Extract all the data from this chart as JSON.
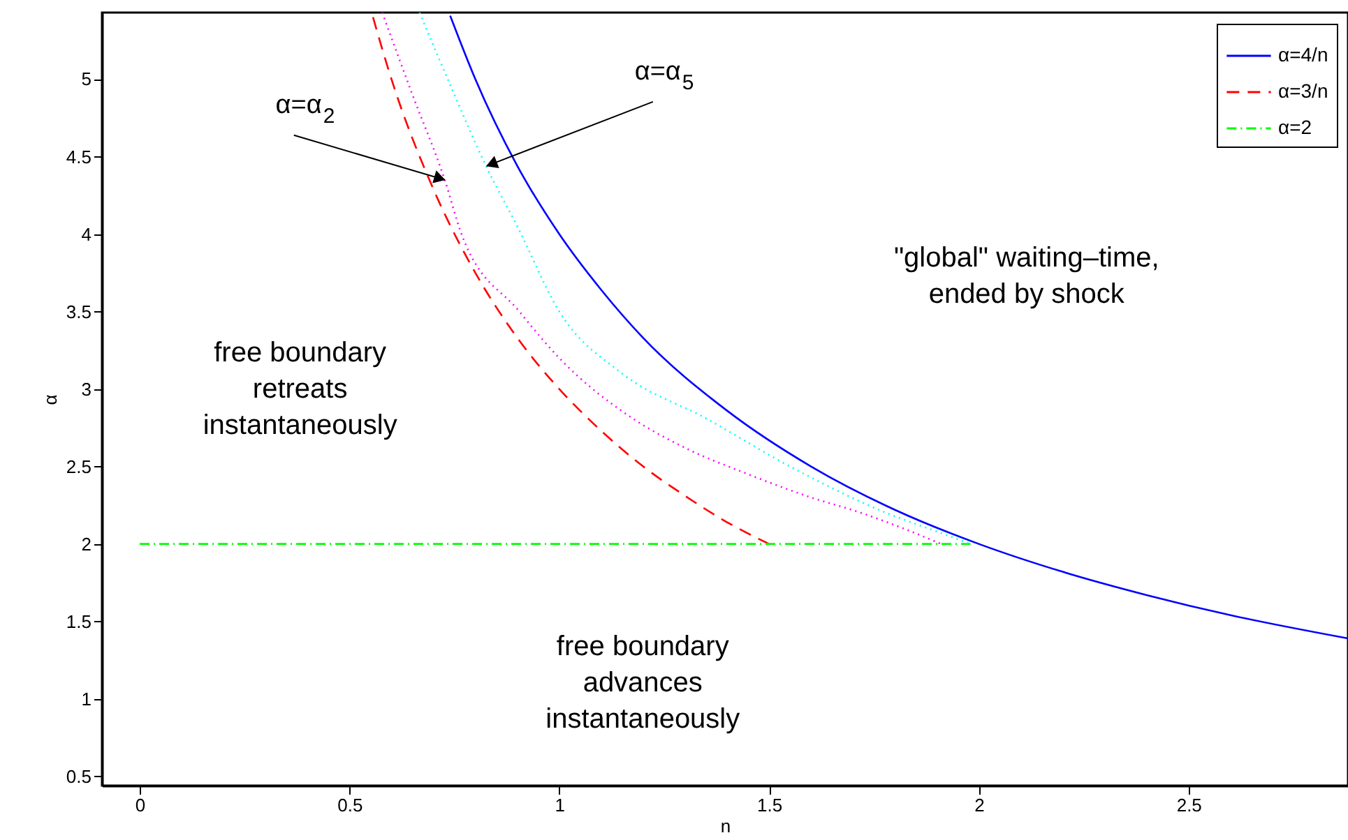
{
  "chart_data": {
    "type": "line",
    "xlabel": "n",
    "ylabel": "α",
    "xlim": [
      -0.09,
      2.88
    ],
    "ylim": [
      0.44,
      5.43
    ],
    "xticks": [
      0,
      0.5,
      1,
      1.5,
      2,
      2.5
    ],
    "yticks": [
      0.5,
      1,
      1.5,
      2,
      2.5,
      3,
      3.5,
      4,
      4.5,
      5
    ],
    "grid": false,
    "legend": "top right",
    "marker": "none",
    "series": [
      {
        "name": "α=4/n",
        "color": "#0000ff",
        "line_style": "solid",
        "x": [
          0.74,
          0.8,
          0.9,
          1.0,
          1.1,
          1.2,
          1.4,
          1.6,
          1.8,
          2.0,
          2.2,
          2.4,
          2.6,
          2.88
        ],
        "values": [
          5.41,
          5.0,
          4.44,
          4.0,
          3.64,
          3.33,
          2.86,
          2.5,
          2.22,
          2.0,
          1.82,
          1.67,
          1.54,
          1.39
        ]
      },
      {
        "name": "α=3/n",
        "color": "#ff0000",
        "line_style": "dashed",
        "x": [
          0.556,
          0.6,
          0.7,
          0.8,
          0.9,
          1.0,
          1.1,
          1.2,
          1.3,
          1.4,
          1.5
        ],
        "values": [
          5.4,
          5.0,
          4.29,
          3.75,
          3.33,
          3.0,
          2.73,
          2.5,
          2.31,
          2.14,
          2.0
        ]
      },
      {
        "name": "α=2",
        "color": "#00ff00",
        "line_style": "dashdot",
        "x": [
          0,
          1.98
        ],
        "values": [
          2,
          2
        ]
      },
      {
        "color": "#ff00ff",
        "line_style": "dotted",
        "x": [
          0.578,
          0.65,
          0.727,
          0.767,
          0.905,
          1.0,
          1.175,
          1.3,
          1.45,
          1.6,
          1.72,
          1.82,
          1.91
        ],
        "values": [
          5.43,
          4.9,
          4.35,
          4.0,
          3.5,
          3.2,
          2.81,
          2.62,
          2.45,
          2.3,
          2.2,
          2.1,
          2.0
        ]
      },
      {
        "color": "#00ffff",
        "line_style": "dotted",
        "x": [
          0.667,
          0.75,
          0.827,
          0.9,
          1.0,
          1.15,
          1.35,
          1.55,
          1.78,
          1.9,
          1.98
        ],
        "values": [
          5.43,
          4.9,
          4.43,
          4.05,
          3.5,
          3.1,
          2.81,
          2.5,
          2.2,
          2.08,
          2.0
        ]
      }
    ],
    "annotations": [
      {
        "text": "α=α$_{2}$",
        "x": 0.727,
        "y": 4.35
      },
      {
        "text": "α=α$_{5}$",
        "x": 0.827,
        "y": 4.44
      },
      "free boundary\nretreats\ninstantaneously",
      "free boundary\nadvances\ninstantaneously",
      "\"global\" waiting–time,\nended by shock"
    ]
  }
}
